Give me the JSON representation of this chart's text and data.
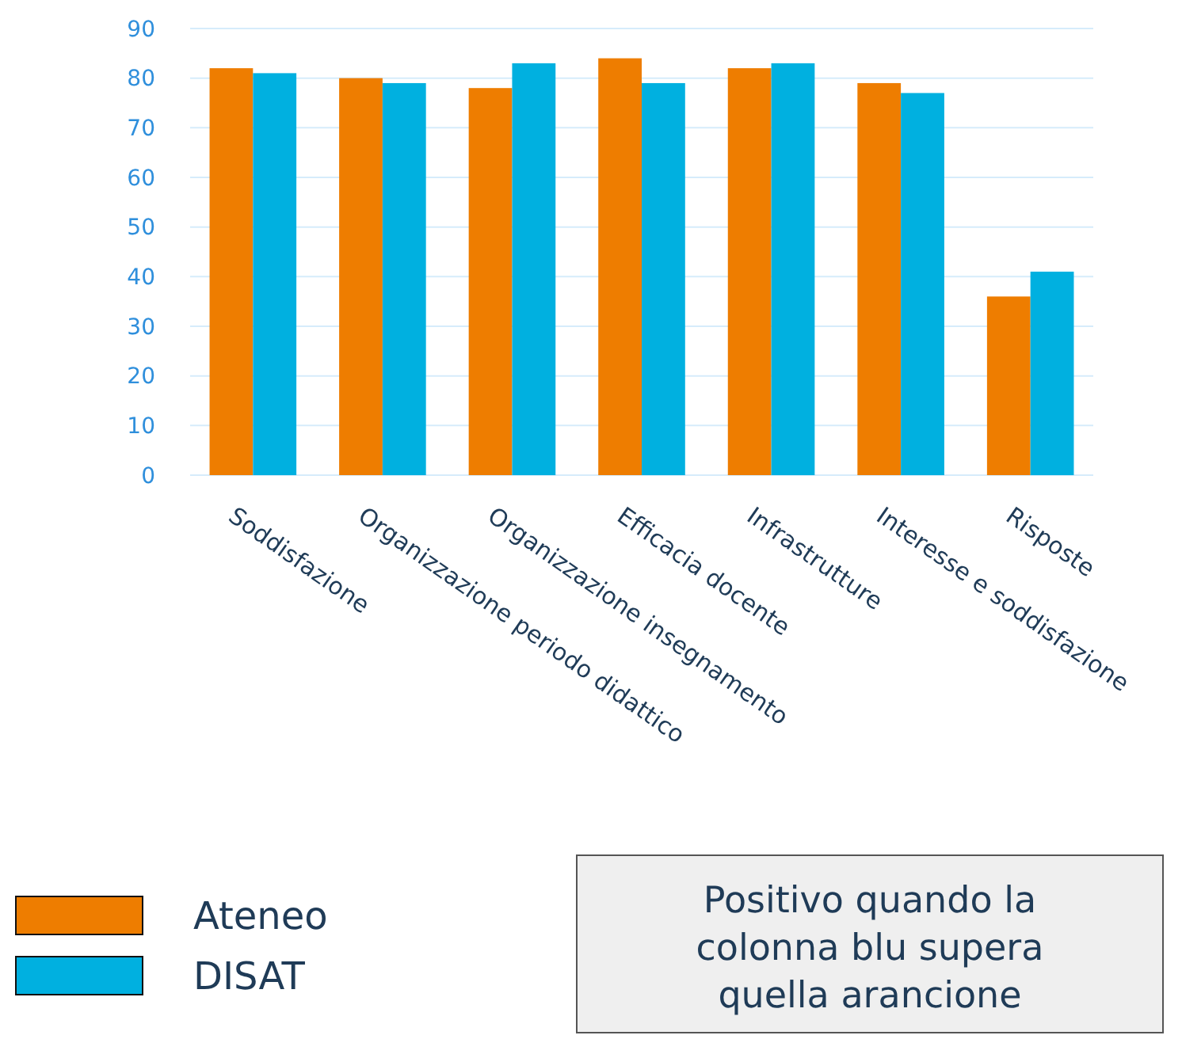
{
  "chart_data": {
    "type": "bar",
    "categories": [
      "Soddisfazione",
      "Organizzazione periodo didattico",
      "Organizzazione insegnamento",
      "Efficacia docente",
      "Infrastrutture",
      "Interesse e soddisfazione",
      "Risposte"
    ],
    "series": [
      {
        "name": "Ateneo",
        "color": "#ee7d00",
        "values": [
          82,
          80,
          78,
          84,
          82,
          79,
          36
        ]
      },
      {
        "name": "DISAT",
        "color": "#00b0e0",
        "values": [
          81,
          79,
          83,
          79,
          83,
          77,
          41
        ]
      }
    ],
    "ylim": [
      0,
      90
    ],
    "yticks": [
      0,
      10,
      20,
      30,
      40,
      50,
      60,
      70,
      80,
      90
    ],
    "grid": "y",
    "legend": "bottom left",
    "annotations": [
      "Positivo quando la colonna blu supera quella arancione"
    ]
  }
}
